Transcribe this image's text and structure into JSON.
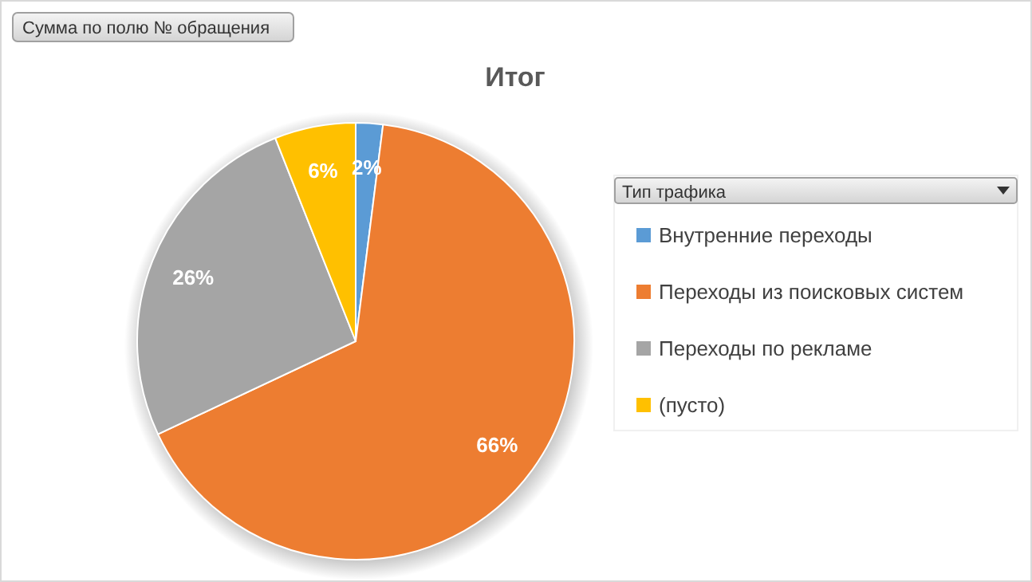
{
  "chart_data": {
    "type": "pie",
    "title": "Итог",
    "annotations": [
      "Сумма по полю № обращения"
    ],
    "legend_title": "Тип трафика",
    "categories": [
      "Внутренние переходы",
      "Переходы из поисковых систем",
      "Переходы по рекламе",
      "(пусто)"
    ],
    "values": [
      2,
      66,
      26,
      6
    ],
    "colors": [
      "#5b9bd5",
      "#ed7d31",
      "#a5a5a5",
      "#ffc000"
    ],
    "value_labels": [
      "2%",
      "66%",
      "26%",
      "6%"
    ],
    "legend": "right"
  }
}
